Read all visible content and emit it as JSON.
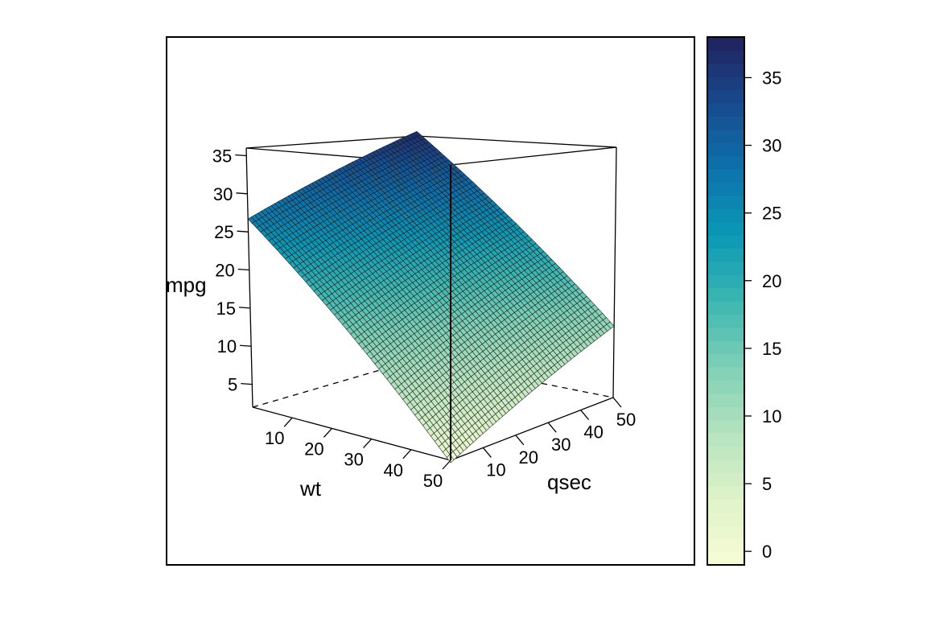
{
  "chart_data": {
    "type": "surface3d",
    "x_axis": {
      "label": "wt",
      "ticks": [
        10,
        20,
        30,
        40,
        50
      ],
      "range": [
        0,
        50
      ]
    },
    "y_axis": {
      "label": "qsec",
      "ticks": [
        10,
        20,
        30,
        40,
        50
      ],
      "range": [
        0,
        50
      ]
    },
    "z_axis": {
      "label": "mpg",
      "ticks": [
        5,
        10,
        15,
        20,
        25,
        30,
        35
      ],
      "range": [
        2,
        36
      ]
    },
    "surface": {
      "shape": "plane",
      "grid_lines": 50,
      "corner_values": [
        {
          "wt": 0,
          "qsec": 0,
          "mpg": 26.7
        },
        {
          "wt": 0,
          "qsec": 50,
          "mpg": 36.7
        },
        {
          "wt": 50,
          "qsec": 50,
          "mpg": 11.7
        },
        {
          "wt": 50,
          "qsec": 0,
          "mpg": 1.7
        }
      ]
    },
    "colorbar": {
      "ticks": [
        0,
        5,
        10,
        15,
        20,
        25,
        30,
        35
      ],
      "range": [
        -1,
        38
      ],
      "colors": [
        "#f7fcd4",
        "#dff3c9",
        "#b5e3bf",
        "#7fd0b6",
        "#3cb6b2",
        "#0b98b5",
        "#0d72ab",
        "#184a8e",
        "#20225e"
      ]
    },
    "grid": false,
    "legend": "right"
  }
}
